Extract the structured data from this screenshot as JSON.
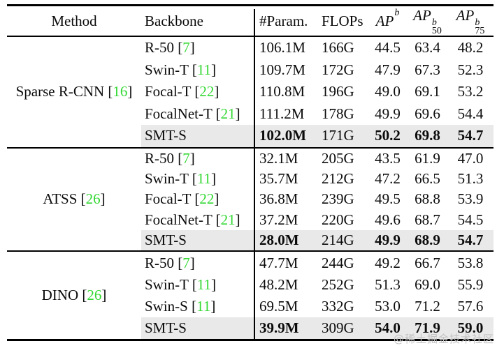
{
  "table": {
    "headers": {
      "method": "Method",
      "backbone": "Backbone",
      "param": "#Param.",
      "flops": "FLOPs",
      "ap": {
        "base": "AP",
        "sup": "b",
        "sub": ""
      },
      "ap50": {
        "base": "AP",
        "sup": "b",
        "sub": "50"
      },
      "ap75": {
        "base": "AP",
        "sup": "b",
        "sub": "75"
      }
    },
    "groups": [
      {
        "method": {
          "name": "Sparse R-CNN",
          "ref": "16"
        },
        "rows": [
          {
            "backbone": {
              "name": "R-50",
              "ref": "7"
            },
            "param": "106.1M",
            "flops": "166G",
            "ap": "44.5",
            "ap50": "63.4",
            "ap75": "48.2",
            "highlight": false,
            "bold": []
          },
          {
            "backbone": {
              "name": "Swin-T",
              "ref": "11"
            },
            "param": "109.7M",
            "flops": "172G",
            "ap": "47.9",
            "ap50": "67.3",
            "ap75": "52.3",
            "highlight": false,
            "bold": []
          },
          {
            "backbone": {
              "name": "Focal-T",
              "ref": "22"
            },
            "param": "110.8M",
            "flops": "196G",
            "ap": "49.0",
            "ap50": "69.1",
            "ap75": "53.2",
            "highlight": false,
            "bold": []
          },
          {
            "backbone": {
              "name": "FocalNet-T",
              "ref": "21"
            },
            "param": "111.2M",
            "flops": "178G",
            "ap": "49.9",
            "ap50": "69.6",
            "ap75": "54.4",
            "highlight": false,
            "bold": []
          },
          {
            "backbone": {
              "name": "SMT-S",
              "ref": null
            },
            "param": "102.0M",
            "flops": "171G",
            "ap": "50.2",
            "ap50": "69.8",
            "ap75": "54.7",
            "highlight": true,
            "bold": [
              "param",
              "ap",
              "ap50",
              "ap75"
            ]
          }
        ]
      },
      {
        "method": {
          "name": "ATSS",
          "ref": "26"
        },
        "rows": [
          {
            "backbone": {
              "name": "R-50",
              "ref": "7"
            },
            "param": "32.1M",
            "flops": "205G",
            "ap": "43.5",
            "ap50": "61.9",
            "ap75": "47.0",
            "highlight": false,
            "bold": []
          },
          {
            "backbone": {
              "name": "Swin-T",
              "ref": "11"
            },
            "param": "35.7M",
            "flops": "212G",
            "ap": "47.2",
            "ap50": "66.5",
            "ap75": "51.3",
            "highlight": false,
            "bold": []
          },
          {
            "backbone": {
              "name": "Focal-T",
              "ref": "22"
            },
            "param": "36.8M",
            "flops": "239G",
            "ap": "49.5",
            "ap50": "68.8",
            "ap75": "53.9",
            "highlight": false,
            "bold": []
          },
          {
            "backbone": {
              "name": "FocalNet-T",
              "ref": "21"
            },
            "param": "37.2M",
            "flops": "220G",
            "ap": "49.6",
            "ap50": "68.7",
            "ap75": "54.5",
            "highlight": false,
            "bold": []
          },
          {
            "backbone": {
              "name": "SMT-S",
              "ref": null
            },
            "param": "28.0M",
            "flops": "214G",
            "ap": "49.9",
            "ap50": "68.9",
            "ap75": "54.7",
            "highlight": true,
            "bold": [
              "param",
              "ap",
              "ap50",
              "ap75"
            ]
          }
        ]
      },
      {
        "method": {
          "name": "DINO",
          "ref": "26"
        },
        "rows": [
          {
            "backbone": {
              "name": "R-50",
              "ref": "7"
            },
            "param": "47.7M",
            "flops": "244G",
            "ap": "49.2",
            "ap50": "66.7",
            "ap75": "53.8",
            "highlight": false,
            "bold": []
          },
          {
            "backbone": {
              "name": "Swin-T",
              "ref": "11"
            },
            "param": "48.2M",
            "flops": "252G",
            "ap": "51.3",
            "ap50": "69.0",
            "ap75": "55.9",
            "highlight": false,
            "bold": []
          },
          {
            "backbone": {
              "name": "Swin-S",
              "ref": "11"
            },
            "param": "69.5M",
            "flops": "332G",
            "ap": "53.0",
            "ap50": "71.2",
            "ap75": "57.6",
            "highlight": false,
            "bold": []
          },
          {
            "backbone": {
              "name": "SMT-S",
              "ref": null
            },
            "param": "39.9M",
            "flops": "309G",
            "ap": "54.0",
            "ap50": "71.9",
            "ap75": "59.0",
            "highlight": true,
            "bold": [
              "param",
              "ap",
              "ap50",
              "ap75"
            ]
          }
        ]
      }
    ]
  },
  "watermark": {
    "text": "@稀土掘金技术社区"
  },
  "colors": {
    "reference_green": "#33d833",
    "highlight_gray": "#e9e9e9",
    "text_black": "#0b0b0b",
    "watermark_gray": "#c3c3c3"
  }
}
